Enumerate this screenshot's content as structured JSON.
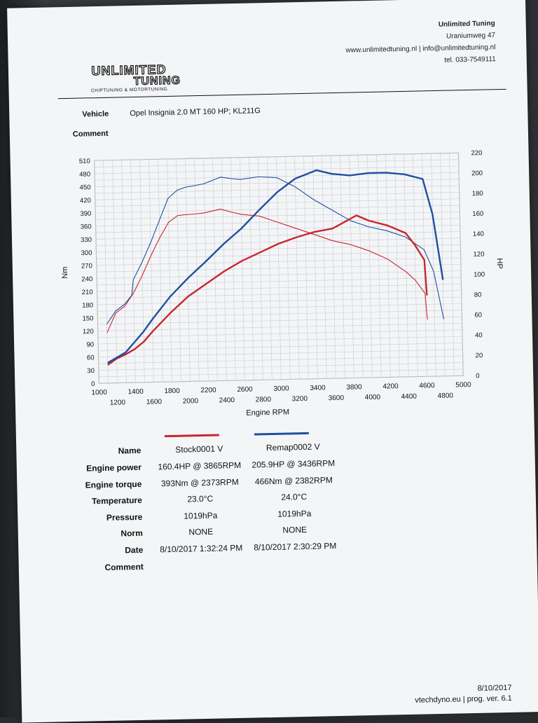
{
  "company": {
    "logo_line1": "UNLIMITED",
    "logo_line2": "TUNING",
    "logo_tagline": "CHIPTUNING & MOTORTUNING",
    "name": "Unlimited Tuning",
    "street": "Uraniumweg 47",
    "web_email": "www.unlimitedtuning.nl | info@unlimitedtuning.nl",
    "phone": "tel. 033-7549111"
  },
  "header": {
    "vehicle_label": "Vehicle",
    "vehicle_value": "Opel Insignia 2.0 MT 160 HP; KL211G",
    "comment_label": "Comment"
  },
  "chart_data": {
    "type": "line",
    "xlabel": "Engine RPM",
    "ylabel_left": "Nm",
    "ylabel_right": "HP",
    "xlim": [
      1000,
      5000
    ],
    "ylim_left": [
      0,
      510
    ],
    "ylim_right": [
      0,
      220
    ],
    "x_ticks_top": [
      "1000",
      "1400",
      "1800",
      "2200",
      "2600",
      "3000",
      "3400",
      "3800",
      "4200",
      "4600",
      "5000"
    ],
    "x_ticks_bottom": [
      "1200",
      "1600",
      "2000",
      "2400",
      "2800",
      "3200",
      "3600",
      "4000",
      "4400",
      "4800"
    ],
    "y_ticks_left": [
      "0",
      "30",
      "60",
      "90",
      "120",
      "150",
      "180",
      "210",
      "240",
      "270",
      "300",
      "330",
      "360",
      "390",
      "420",
      "450",
      "480",
      "510"
    ],
    "y_ticks_right": [
      "0",
      "20",
      "40",
      "60",
      "80",
      "100",
      "120",
      "140",
      "160",
      "180",
      "200",
      "220"
    ],
    "grid": true,
    "series": [
      {
        "name": "Stock0001 V",
        "quantity": "torque",
        "axis": "left",
        "color": "#c8262f",
        "x": [
          1100,
          1200,
          1300,
          1400,
          1500,
          1600,
          1700,
          1800,
          1900,
          2000,
          2100,
          2200,
          2373,
          2500,
          2600,
          2800,
          3000,
          3200,
          3400,
          3600,
          3800,
          4000,
          4200,
          4400,
          4500,
          4600,
          4620
        ],
        "y": [
          115,
          160,
          175,
          205,
          245,
          290,
          330,
          365,
          380,
          382,
          383,
          385,
          393,
          385,
          380,
          375,
          360,
          345,
          330,
          315,
          305,
          290,
          270,
          240,
          220,
          190,
          130
        ]
      },
      {
        "name": "Remap0002 V",
        "quantity": "torque",
        "axis": "left",
        "color": "#1f4f9e",
        "x": [
          1100,
          1200,
          1300,
          1380,
          1400,
          1500,
          1600,
          1700,
          1800,
          1900,
          2000,
          2100,
          2200,
          2382,
          2500,
          2600,
          2800,
          3000,
          3200,
          3400,
          3600,
          3800,
          4000,
          4200,
          4400,
          4600,
          4700,
          4800
        ],
        "y": [
          135,
          165,
          180,
          200,
          235,
          275,
          320,
          370,
          420,
          438,
          445,
          448,
          452,
          466,
          462,
          460,
          465,
          462,
          440,
          410,
          385,
          360,
          345,
          335,
          320,
          290,
          240,
          130
        ]
      },
      {
        "name": "Stock0001 V",
        "quantity": "power",
        "axis": "right",
        "color": "#c8262f",
        "x": [
          1100,
          1200,
          1300,
          1400,
          1500,
          1600,
          1800,
          2000,
          2200,
          2400,
          2600,
          2800,
          3000,
          3200,
          3400,
          3600,
          3865,
          4000,
          4200,
          4400,
          4500,
          4600,
          4620
        ],
        "y": [
          18,
          24,
          28,
          33,
          40,
          50,
          68,
          84,
          96,
          108,
          118,
          126,
          134,
          140,
          145,
          148,
          160.4,
          155,
          150,
          142,
          130,
          115,
          80
        ]
      },
      {
        "name": "Remap0002 V",
        "quantity": "power",
        "axis": "right",
        "color": "#1f4f9e",
        "x": [
          1100,
          1200,
          1300,
          1400,
          1500,
          1600,
          1800,
          2000,
          2200,
          2400,
          2600,
          2800,
          3000,
          3200,
          3436,
          3600,
          3800,
          4000,
          4200,
          4400,
          4600,
          4700,
          4800
        ],
        "y": [
          20,
          25,
          30,
          40,
          50,
          62,
          84,
          102,
          118,
          135,
          150,
          168,
          185,
          198,
          205.9,
          202,
          200,
          202,
          202,
          200,
          195,
          160,
          95
        ]
      }
    ]
  },
  "legend": [
    {
      "name": "Stock0001 V",
      "color": "#c8262f"
    },
    {
      "name": "Remap0002 V",
      "color": "#1f4f9e"
    }
  ],
  "table": {
    "name_label": "Name",
    "rows": [
      {
        "label": "Engine power",
        "stock": "160.4HP @  3865RPM",
        "remap": "205.9HP @  3436RPM"
      },
      {
        "label": "Engine torque",
        "stock": "393Nm @ 2373RPM",
        "remap": "466Nm @ 2382RPM"
      },
      {
        "label": "Temperature",
        "stock": "23.0°C",
        "remap": "24.0°C"
      },
      {
        "label": "Pressure",
        "stock": "1019hPa",
        "remap": "1019hPa"
      },
      {
        "label": "Norm",
        "stock": "NONE",
        "remap": "NONE"
      },
      {
        "label": "Date",
        "stock": "8/10/2017 1:32:24 PM",
        "remap": "8/10/2017 2:30:29 PM"
      }
    ],
    "comment_label": "Comment"
  },
  "footer": {
    "date": "8/10/2017",
    "program": "vtechdyno.eu | prog. ver. 6.1"
  }
}
